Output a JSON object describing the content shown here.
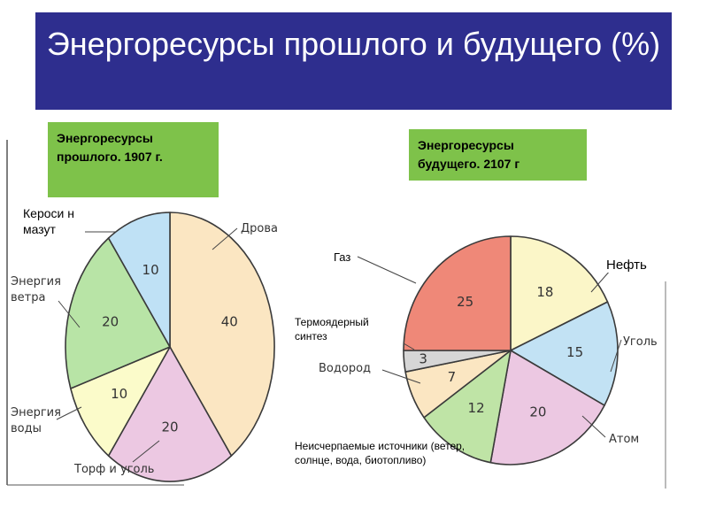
{
  "slide": {
    "title": "Энергоресурсы прошлого и будущего (%)",
    "past_box": "Энергоресурсы прошлого. 1907 г.",
    "future_box": "Энергоресурсы будущего. 2107 г"
  },
  "colors": {
    "title_bar": "#2e2e8e",
    "box_green": "#7ec24a"
  },
  "chart_data": [
    {
      "type": "pie",
      "title": "Энергоресурсы прошлого. 1907 г.",
      "slices": [
        {
          "label": "Дрова",
          "value": 40,
          "color": "#fbe6c2"
        },
        {
          "label": "Торф и уголь",
          "value": 20,
          "color": "#ecc8e2"
        },
        {
          "label": "Энергия воды",
          "value": 10,
          "color": "#fbfbca"
        },
        {
          "label": "Энергия ветра",
          "value": 20,
          "color": "#b8e4a6"
        },
        {
          "label": "Кероси н мазут",
          "value": 10,
          "color": "#bfe1f5"
        }
      ]
    },
    {
      "type": "pie",
      "title": "Энергоресурсы будущего. 2107 г",
      "slices": [
        {
          "label": "Нефть",
          "value": 18,
          "color": "#fbf6c8"
        },
        {
          "label": "Уголь",
          "value": 15,
          "color": "#c2e2f4"
        },
        {
          "label": "Атом",
          "value": 20,
          "color": "#ecc8e2"
        },
        {
          "label": "Неисчерпаемые источники (ветер, солнце, вода, биотопливо)",
          "value": 12,
          "color": "#bfe4a6"
        },
        {
          "label": "Водород",
          "value": 7,
          "color": "#fbe6c2"
        },
        {
          "label": "Термоядерный синтез",
          "value": 3,
          "color": "#d6d6d6"
        },
        {
          "label": "Газ",
          "value": 25,
          "color": "#ef8878"
        }
      ]
    }
  ]
}
